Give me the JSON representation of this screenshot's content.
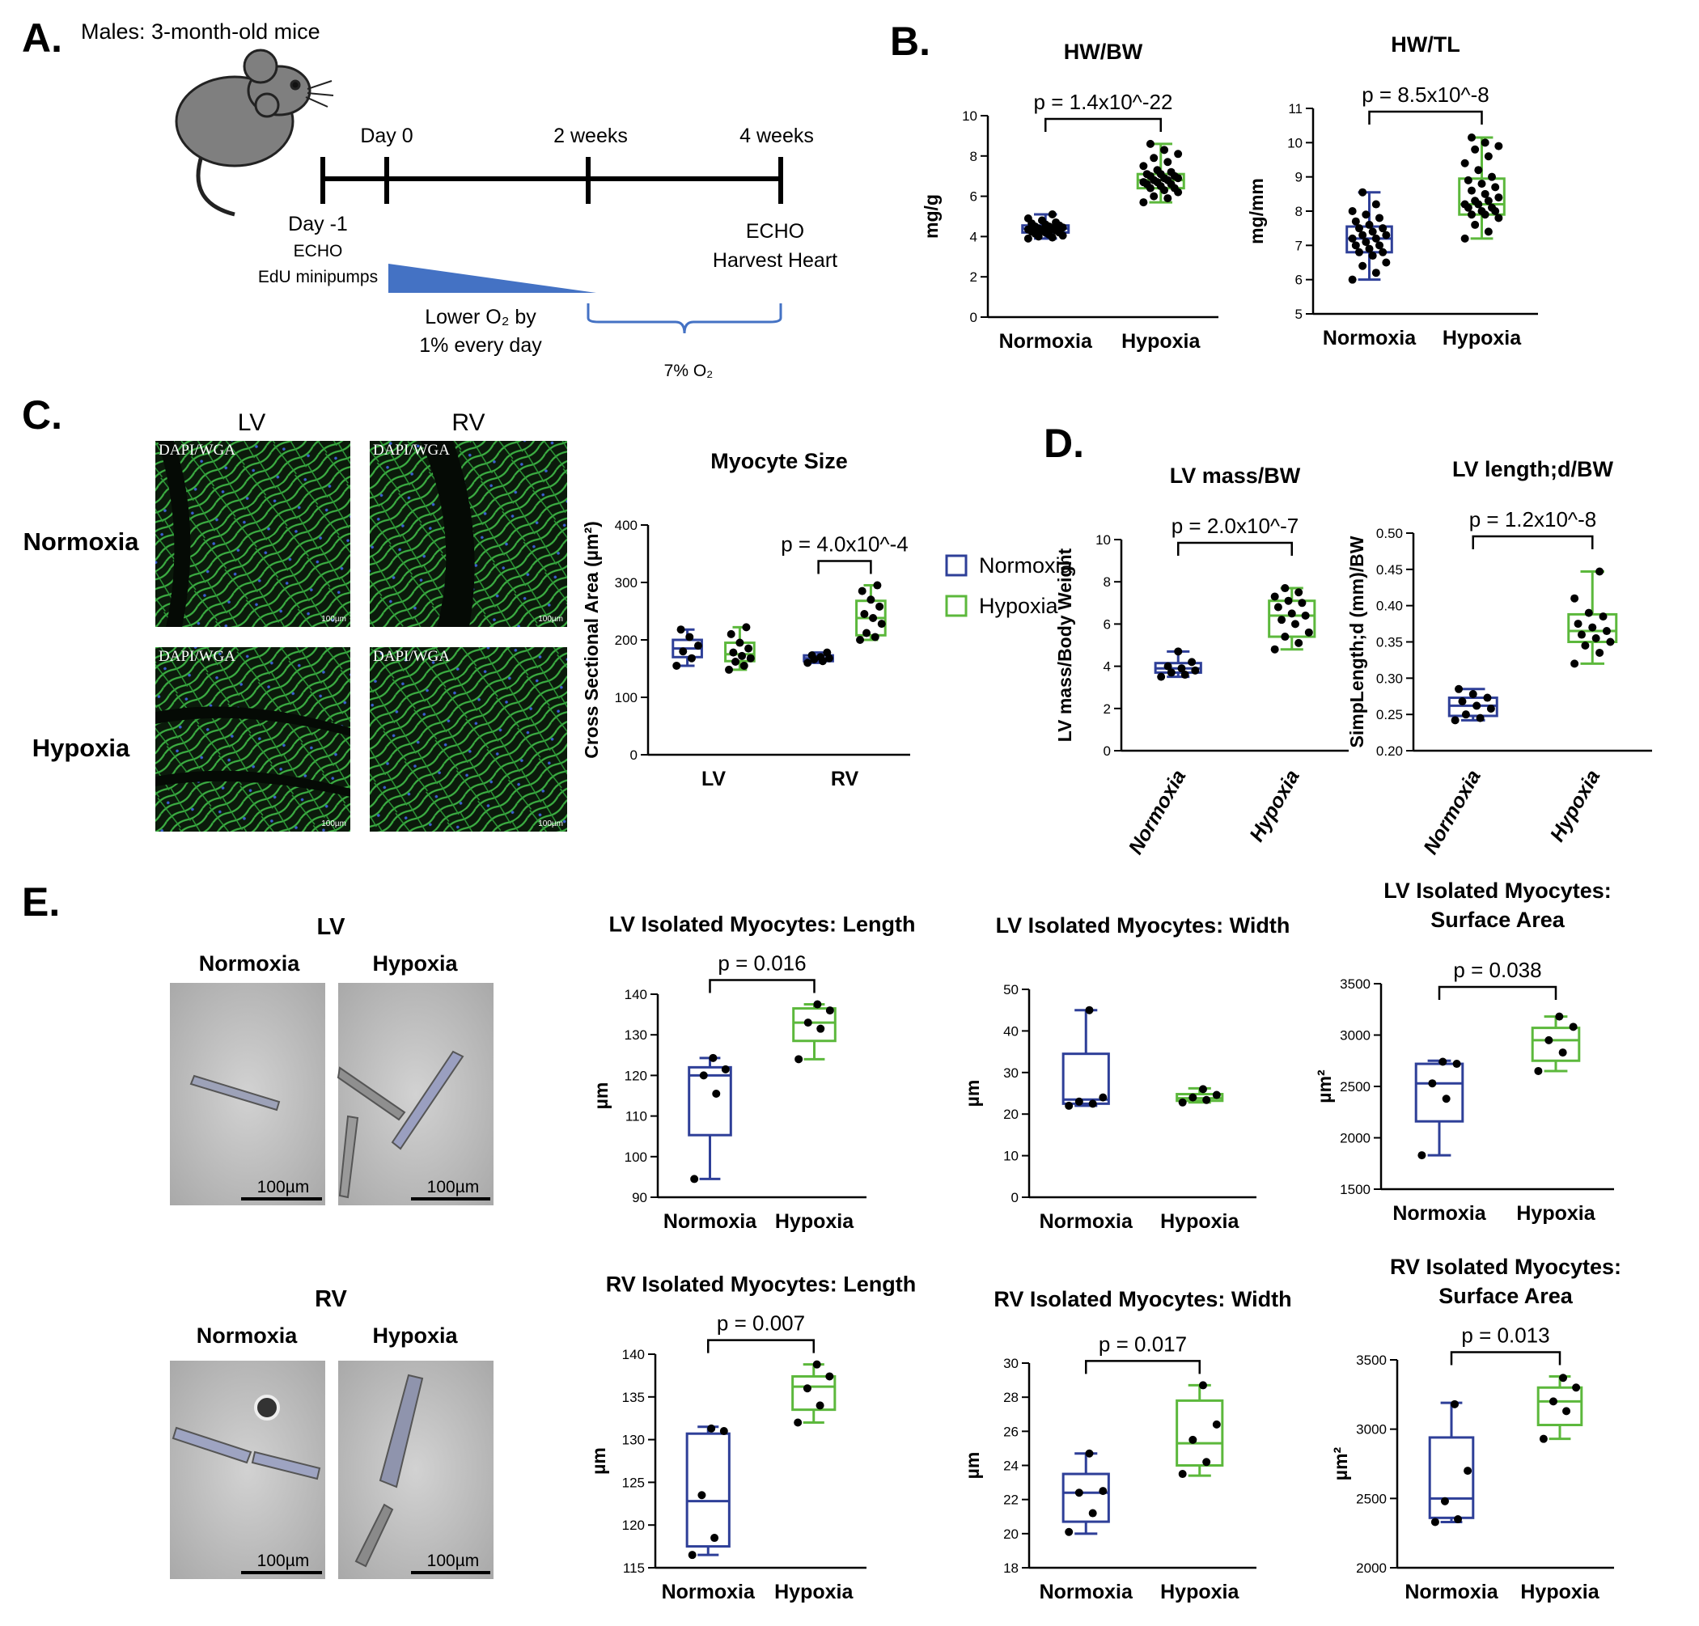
{
  "panel_a": {
    "label": "A.",
    "subtitle": "Males: 3-month-old mice",
    "timeline": [
      "Day 0",
      "2 weeks",
      "4 weeks"
    ],
    "start": "Day -1",
    "start_notes": [
      "ECHO",
      "EdU minipumps"
    ],
    "end": [
      "ECHO",
      "Harvest Heart"
    ],
    "ramp": [
      "Lower O₂ by",
      "1% every day"
    ],
    "hold": "7% O₂"
  },
  "panel_labels": {
    "B": "B.",
    "D": "D."
  },
  "panel_c": {
    "label": "C.",
    "columns": [
      "LV",
      "RV"
    ],
    "rows": [
      "Normoxia",
      "Hypoxia"
    ],
    "stain": "DAPI/WGA",
    "scale_bar": "100µm"
  },
  "panel_e": {
    "label": "E.",
    "sections": [
      {
        "title": "LV",
        "columns": [
          "Normoxia",
          "Hypoxia"
        ]
      },
      {
        "title": "RV",
        "columns": [
          "Normoxia",
          "Hypoxia"
        ]
      }
    ],
    "scale_bar": "100µm"
  },
  "chart_data": [
    {
      "type": "box",
      "title": [
        "HW/BW"
      ],
      "ylabel": "mg/g",
      "ylim": [
        0,
        10
      ],
      "yticks": [
        0,
        2,
        4,
        6,
        8,
        10
      ],
      "annotation": "p = 1.4x10^-22",
      "groups": [
        {
          "name": "Normoxia",
          "color": "#2e3f98",
          "min": 3.9,
          "q1": 4.2,
          "median": 4.4,
          "q3": 4.55,
          "max": 5.1,
          "points": [
            3.9,
            3.95,
            4.0,
            4.05,
            4.1,
            4.15,
            4.2,
            4.2,
            4.25,
            4.3,
            4.3,
            4.35,
            4.4,
            4.4,
            4.45,
            4.5,
            4.5,
            4.55,
            4.6,
            4.65,
            4.7,
            4.8,
            4.9,
            5.1
          ]
        },
        {
          "name": "Hypoxia",
          "color": "#5cb83c",
          "min": 5.7,
          "q1": 6.4,
          "median": 6.8,
          "q3": 7.1,
          "max": 8.6,
          "points": [
            5.7,
            5.9,
            6.0,
            6.2,
            6.3,
            6.4,
            6.4,
            6.5,
            6.6,
            6.6,
            6.7,
            6.7,
            6.8,
            6.8,
            6.9,
            6.9,
            7.0,
            7.0,
            7.1,
            7.1,
            7.2,
            7.3,
            7.5,
            7.7,
            7.9,
            8.1,
            8.3,
            8.6
          ]
        }
      ]
    },
    {
      "type": "box",
      "title": [
        "HW/TL"
      ],
      "ylabel": "mg/mm",
      "ylim": [
        5,
        11
      ],
      "yticks": [
        5,
        6,
        7,
        8,
        9,
        10,
        11
      ],
      "annotation": "p = 8.5x10^-8",
      "groups": [
        {
          "name": "Normoxia",
          "color": "#2e3f98",
          "min": 6.0,
          "q1": 6.8,
          "median": 7.2,
          "q3": 7.55,
          "max": 8.55,
          "points": [
            6.0,
            6.2,
            6.4,
            6.5,
            6.7,
            6.8,
            6.8,
            6.9,
            7.0,
            7.0,
            7.1,
            7.2,
            7.2,
            7.3,
            7.3,
            7.4,
            7.5,
            7.5,
            7.6,
            7.7,
            7.8,
            7.9,
            8.0,
            8.2,
            8.55
          ]
        },
        {
          "name": "Hypoxia",
          "color": "#5cb83c",
          "min": 7.2,
          "q1": 7.9,
          "median": 8.2,
          "q3": 8.95,
          "max": 10.15,
          "points": [
            7.2,
            7.4,
            7.6,
            7.8,
            7.9,
            7.9,
            8.0,
            8.0,
            8.1,
            8.1,
            8.2,
            8.2,
            8.3,
            8.3,
            8.4,
            8.5,
            8.6,
            8.7,
            8.8,
            8.9,
            9.0,
            9.2,
            9.4,
            9.6,
            9.8,
            9.9,
            10.0,
            10.15
          ]
        }
      ]
    },
    {
      "type": "grouped_box",
      "title": [
        "Myocyte Size"
      ],
      "ylabel": "Cross Sectional Area (µm²)",
      "ylim": [
        0,
        400
      ],
      "yticks": [
        0,
        100,
        200,
        300,
        400
      ],
      "categories": [
        "LV",
        "RV"
      ],
      "annotations": [
        null,
        "p = 4.0x10^-4"
      ],
      "legend": "right",
      "series": [
        {
          "name": "Normoxia",
          "color": "#2e3f98",
          "boxes": [
            {
              "min": 155,
              "q1": 170,
              "median": 185,
              "q3": 200,
              "max": 218
            },
            {
              "min": 160,
              "q1": 163,
              "median": 168,
              "q3": 173,
              "max": 178
            }
          ],
          "points": [
            [
              155,
              168,
              180,
              190,
              205,
              218
            ],
            [
              160,
              163,
              166,
              168,
              170,
              173,
              178
            ]
          ]
        },
        {
          "name": "Hypoxia",
          "color": "#5cb83c",
          "boxes": [
            {
              "min": 148,
              "q1": 163,
              "median": 175,
              "q3": 195,
              "max": 222
            },
            {
              "min": 200,
              "q1": 208,
              "median": 238,
              "q3": 268,
              "max": 295
            }
          ],
          "points": [
            [
              148,
              155,
              162,
              168,
              172,
              178,
              185,
              195,
              210,
              222
            ],
            [
              200,
              205,
              212,
              228,
              238,
              245,
              258,
              270,
              285,
              295
            ]
          ]
        }
      ]
    },
    {
      "type": "box",
      "title": [
        "LV mass/BW"
      ],
      "ylabel": "LV mass/Body Weight",
      "ylim": [
        0,
        10
      ],
      "yticks": [
        0,
        2,
        4,
        6,
        8,
        10
      ],
      "annotation": "p = 2.0x10^-7",
      "x_tick_rotation": -60,
      "groups": [
        {
          "name": "Normoxia",
          "color": "#2e3f98",
          "min": 3.5,
          "q1": 3.7,
          "median": 3.9,
          "q3": 4.15,
          "max": 4.7,
          "points": [
            3.5,
            3.6,
            3.7,
            3.8,
            3.9,
            4.0,
            4.2,
            4.7
          ]
        },
        {
          "name": "Hypoxia",
          "color": "#5cb83c",
          "min": 4.8,
          "q1": 5.4,
          "median": 6.4,
          "q3": 7.1,
          "max": 7.7,
          "points": [
            4.8,
            5.1,
            5.4,
            5.6,
            6.0,
            6.2,
            6.4,
            6.5,
            6.8,
            7.0,
            7.1,
            7.3,
            7.5,
            7.7
          ]
        }
      ]
    },
    {
      "type": "box",
      "title": [
        "LV length;d/BW"
      ],
      "ylabel": "SimpLength;d (mm)/BW",
      "ylim": [
        0.2,
        0.5
      ],
      "yticks": [
        {
          "value": 0.2,
          "label": "0.20"
        },
        0.25,
        {
          "value": 0.3,
          "label": "0.30"
        },
        0.35,
        {
          "value": 0.4,
          "label": "0.40"
        },
        0.45,
        {
          "value": 0.5,
          "label": "0.50"
        }
      ],
      "annotation": "p = 1.2x10^-8",
      "x_tick_rotation": -60,
      "groups": [
        {
          "name": "Normoxia",
          "color": "#2e3f98",
          "min": 0.242,
          "q1": 0.248,
          "median": 0.262,
          "q3": 0.273,
          "max": 0.285,
          "points": [
            0.242,
            0.245,
            0.25,
            0.258,
            0.262,
            0.268,
            0.273,
            0.278,
            0.285
          ]
        },
        {
          "name": "Hypoxia",
          "color": "#5cb83c",
          "min": 0.32,
          "q1": 0.35,
          "median": 0.365,
          "q3": 0.388,
          "max": 0.447,
          "points": [
            0.32,
            0.335,
            0.345,
            0.35,
            0.355,
            0.36,
            0.365,
            0.37,
            0.375,
            0.385,
            0.39,
            0.41,
            0.447
          ]
        }
      ]
    },
    {
      "type": "box",
      "title": [
        "LV Isolated Myocytes: Length"
      ],
      "ylabel": "µm",
      "ylim": [
        90,
        140
      ],
      "yticks": [
        90,
        100,
        110,
        120,
        130,
        140
      ],
      "annotation": "p = 0.016",
      "groups": [
        {
          "name": "Normoxia",
          "color": "#2e3f98",
          "min": 94.5,
          "q1": 105.3,
          "median": 120,
          "q3": 122,
          "max": 124.3,
          "points": [
            94.5,
            115.5,
            120,
            121.5,
            124.3
          ]
        },
        {
          "name": "Hypoxia",
          "color": "#5cb83c",
          "min": 124,
          "q1": 128.5,
          "median": 133,
          "q3": 136.5,
          "max": 137.5,
          "points": [
            124,
            131.5,
            133,
            136,
            137.5
          ]
        }
      ]
    },
    {
      "type": "box",
      "title": [
        "LV Isolated Myocytes: Width"
      ],
      "ylabel": "µm",
      "ylim": [
        0,
        50
      ],
      "yticks": [
        0,
        10,
        20,
        30,
        40,
        50
      ],
      "annotation": null,
      "groups": [
        {
          "name": "Normoxia",
          "color": "#2e3f98",
          "min": 22,
          "q1": 22.5,
          "median": 23.5,
          "q3": 34.5,
          "max": 45,
          "points": [
            22,
            22.5,
            23,
            24,
            45
          ]
        },
        {
          "name": "Hypoxia",
          "color": "#5cb83c",
          "min": 22.8,
          "q1": 23.2,
          "median": 23.8,
          "q3": 24.8,
          "max": 26.2,
          "points": [
            22.8,
            23.4,
            24,
            24.6,
            26
          ]
        }
      ]
    },
    {
      "type": "box",
      "title": [
        "LV Isolated Myocytes:",
        "Surface Area"
      ],
      "ylabel": "µm²",
      "ylim": [
        1500,
        3500
      ],
      "yticks": [
        1500,
        2000,
        2500,
        3000,
        3500
      ],
      "annotation": "p = 0.038",
      "groups": [
        {
          "name": "Normoxia",
          "color": "#2e3f98",
          "min": 1830,
          "q1": 2160,
          "median": 2530,
          "q3": 2720,
          "max": 2750,
          "points": [
            1830,
            2380,
            2530,
            2720,
            2740
          ]
        },
        {
          "name": "Hypoxia",
          "color": "#5cb83c",
          "min": 2650,
          "q1": 2750,
          "median": 2950,
          "q3": 3070,
          "max": 3180,
          "points": [
            2650,
            2830,
            2950,
            3080,
            3180
          ]
        }
      ]
    },
    {
      "type": "box",
      "title": [
        "RV Isolated Myocytes: Length"
      ],
      "ylabel": "µm",
      "ylim": [
        115,
        140
      ],
      "yticks": [
        115,
        120,
        125,
        130,
        135,
        140
      ],
      "annotation": "p = 0.007",
      "groups": [
        {
          "name": "Normoxia",
          "color": "#2e3f98",
          "min": 116.5,
          "q1": 117.5,
          "median": 122.8,
          "q3": 130.7,
          "max": 131.5,
          "points": [
            116.5,
            118.5,
            123.5,
            131,
            131.3
          ]
        },
        {
          "name": "Hypoxia",
          "color": "#5cb83c",
          "min": 132,
          "q1": 133.5,
          "median": 136.2,
          "q3": 137.4,
          "max": 138.8,
          "points": [
            132,
            134,
            136,
            137.4,
            138.8
          ]
        }
      ]
    },
    {
      "type": "box",
      "title": [
        "RV Isolated Myocytes: Width"
      ],
      "ylabel": "µm",
      "ylim": [
        18,
        30
      ],
      "yticks": [
        18,
        20,
        22,
        24,
        26,
        28,
        30
      ],
      "annotation": "p = 0.017",
      "groups": [
        {
          "name": "Normoxia",
          "color": "#2e3f98",
          "min": 20,
          "q1": 20.7,
          "median": 22.4,
          "q3": 23.5,
          "max": 24.7,
          "points": [
            20.1,
            21.2,
            22.4,
            22.5,
            24.7
          ]
        },
        {
          "name": "Hypoxia",
          "color": "#5cb83c",
          "min": 23.4,
          "q1": 24,
          "median": 25.3,
          "q3": 27.8,
          "max": 28.7,
          "points": [
            23.5,
            24.2,
            25.5,
            26.4,
            28.7
          ]
        }
      ]
    },
    {
      "type": "box",
      "title": [
        "RV Isolated Myocytes:",
        "Surface Area"
      ],
      "ylabel": "µm²",
      "ylim": [
        2000,
        3500
      ],
      "yticks": [
        2000,
        2500,
        3000,
        3500
      ],
      "annotation": "p = 0.013",
      "groups": [
        {
          "name": "Normoxia",
          "color": "#2e3f98",
          "min": 2330,
          "q1": 2360,
          "median": 2500,
          "q3": 2940,
          "max": 3190,
          "points": [
            2330,
            2350,
            2480,
            2700,
            3180
          ]
        },
        {
          "name": "Hypoxia",
          "color": "#5cb83c",
          "min": 2930,
          "q1": 3030,
          "median": 3200,
          "q3": 3300,
          "max": 3380,
          "points": [
            2930,
            3130,
            3200,
            3300,
            3370
          ]
        }
      ]
    }
  ]
}
